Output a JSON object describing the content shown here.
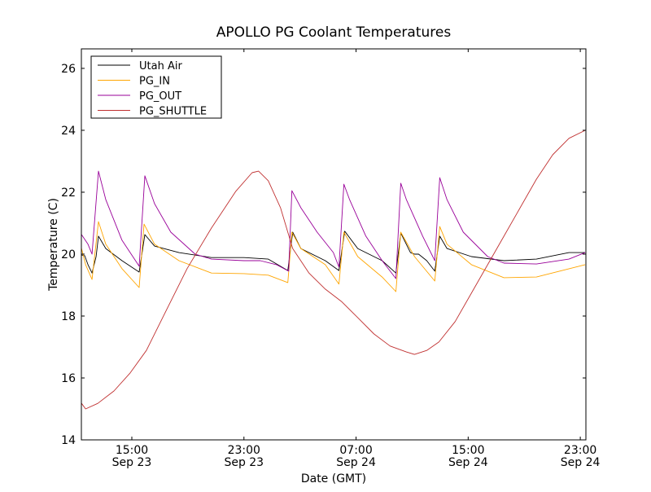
{
  "chart_data": {
    "type": "line",
    "title": "APOLLO PG Coolant Temperatures",
    "xlabel": "Date (GMT)",
    "ylabel": "Temperature (C)",
    "x_units": "hours since Sep 23 00:00 GMT",
    "xlim": [
      11.4,
      47.4
    ],
    "ylim": [
      14,
      26.63
    ],
    "grid": false,
    "legend_position": "top-left",
    "yticks": [
      14,
      16,
      18,
      20,
      22,
      24,
      26
    ],
    "xticks": [
      {
        "value": 15,
        "time": "15:00",
        "date": "Sep 23"
      },
      {
        "value": 23,
        "time": "23:00",
        "date": "Sep 23"
      },
      {
        "value": 31,
        "time": "07:00",
        "date": "Sep 24"
      },
      {
        "value": 39,
        "time": "15:00",
        "date": "Sep 24"
      },
      {
        "value": 47,
        "time": "23:00",
        "date": "Sep 24"
      }
    ],
    "series": [
      {
        "name": "Utah Air",
        "color": "#000000",
        "x": [
          11.41,
          11.64,
          11.87,
          12.16,
          12.45,
          12.62,
          13.14,
          14.3,
          15.52,
          15.93,
          16.62,
          18.36,
          20.68,
          23.0,
          24.74,
          26.13,
          26.48,
          27.06,
          28.8,
          29.78,
          30.19,
          31.12,
          32.86,
          33.84,
          34.19,
          34.88,
          35.17,
          35.46,
          36.04,
          36.62,
          36.97,
          37.49,
          39.23,
          41.55,
          43.87,
          46.19,
          47.35
        ],
        "y": [
          19.97,
          19.95,
          19.66,
          19.39,
          19.92,
          20.58,
          20.18,
          19.79,
          19.42,
          20.63,
          20.26,
          20.05,
          19.89,
          19.89,
          19.84,
          19.47,
          20.71,
          20.18,
          19.79,
          19.47,
          20.74,
          20.18,
          19.79,
          19.39,
          20.68,
          20.05,
          20.0,
          20.0,
          19.79,
          19.45,
          20.58,
          20.18,
          19.92,
          19.79,
          19.84,
          20.05,
          20.05
        ]
      },
      {
        "name": "PG_IN",
        "color": "#ffa500",
        "x": [
          11.41,
          11.7,
          12.16,
          12.62,
          13.14,
          14.3,
          15.52,
          15.87,
          16.62,
          18.36,
          20.68,
          23.0,
          24.74,
          26.13,
          26.42,
          27.06,
          28.8,
          29.78,
          30.13,
          31.12,
          32.86,
          33.84,
          34.19,
          35.17,
          36.62,
          36.97,
          37.49,
          39.23,
          41.55,
          43.87,
          47.35
        ],
        "y": [
          20.18,
          19.66,
          19.18,
          21.05,
          20.32,
          19.53,
          18.92,
          20.97,
          20.32,
          19.79,
          19.39,
          19.37,
          19.32,
          19.08,
          20.71,
          20.18,
          19.66,
          19.03,
          20.71,
          19.92,
          19.26,
          18.79,
          20.71,
          19.92,
          19.13,
          20.89,
          20.32,
          19.66,
          19.24,
          19.26,
          19.66
        ]
      },
      {
        "name": "PG_OUT",
        "color": "#990099",
        "x": [
          11.41,
          11.87,
          12.16,
          12.62,
          13.14,
          14.3,
          15.52,
          15.93,
          16.62,
          17.78,
          19.52,
          20.68,
          23.0,
          24.16,
          25.32,
          26.19,
          26.42,
          27.06,
          28.22,
          29.38,
          29.78,
          30.13,
          30.54,
          31.7,
          32.86,
          33.84,
          34.19,
          34.59,
          35.75,
          36.62,
          36.97,
          37.49,
          38.65,
          40.39,
          41.55,
          43.87,
          46.19,
          47.35
        ],
        "y": [
          20.63,
          20.32,
          20.0,
          22.68,
          21.76,
          20.45,
          19.61,
          22.53,
          21.63,
          20.71,
          20.0,
          19.84,
          19.79,
          19.79,
          19.66,
          19.45,
          22.05,
          21.5,
          20.71,
          20.05,
          19.58,
          22.26,
          21.76,
          20.58,
          19.79,
          19.21,
          22.29,
          21.76,
          20.58,
          19.79,
          22.47,
          21.76,
          20.71,
          19.92,
          19.71,
          19.68,
          19.84,
          20.05
        ]
      },
      {
        "name": "PG_SHUTTLE",
        "color": "#c03030",
        "x": [
          11.41,
          11.7,
          12.57,
          13.72,
          14.88,
          16.04,
          17.2,
          18.94,
          20.68,
          22.42,
          23.58,
          24.04,
          24.74,
          25.61,
          26.48,
          27.64,
          28.8,
          29.96,
          31.12,
          32.28,
          33.43,
          34.59,
          35.17,
          36.04,
          36.91,
          38.07,
          39.23,
          40.39,
          41.55,
          42.71,
          43.87,
          45.03,
          46.19,
          47.35
        ],
        "y": [
          15.18,
          15.0,
          15.18,
          15.58,
          16.16,
          16.89,
          17.95,
          19.53,
          20.84,
          22.03,
          22.63,
          22.68,
          22.37,
          21.5,
          20.18,
          19.39,
          18.87,
          18.47,
          17.95,
          17.42,
          17.03,
          16.84,
          16.76,
          16.89,
          17.16,
          17.82,
          18.74,
          19.66,
          20.58,
          21.5,
          22.42,
          23.21,
          23.74,
          24.0
        ]
      }
    ]
  }
}
